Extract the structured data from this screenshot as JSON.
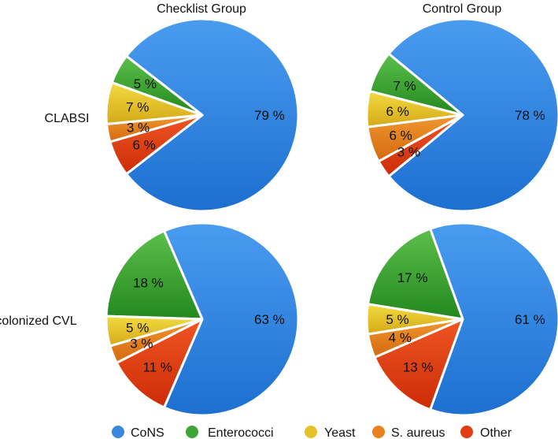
{
  "chart_data": [
    {
      "type": "pie",
      "title": "Checklist Group",
      "row_label": "CLABSI",
      "categories": [
        "CoNS",
        "Enterococci",
        "Yeast",
        "S. aureus",
        "Other"
      ],
      "values": [
        79,
        5,
        7,
        3,
        6
      ],
      "labels": [
        "79 %",
        "5 %",
        "7 %",
        "3 %",
        "6 %"
      ]
    },
    {
      "type": "pie",
      "title": "Control Group",
      "row_label": "CLABSI",
      "categories": [
        "CoNS",
        "Enterococci",
        "Yeast",
        "S. aureus",
        "Other"
      ],
      "values": [
        78,
        7,
        6,
        6,
        3
      ],
      "labels": [
        "78 %",
        "7 %",
        "6 %",
        "6 %",
        "3 %"
      ]
    },
    {
      "type": "pie",
      "title": "Checklist Group",
      "row_label": "colonized CVL",
      "categories": [
        "CoNS",
        "Enterococci",
        "Yeast",
        "S. aureus",
        "Other"
      ],
      "values": [
        63,
        18,
        5,
        3,
        11
      ],
      "labels": [
        "63 %",
        "18 %",
        "5 %",
        "3 %",
        "11 %"
      ]
    },
    {
      "type": "pie",
      "title": "Control Group",
      "row_label": "colonized CVL",
      "categories": [
        "CoNS",
        "Enterococci",
        "Yeast",
        "S. aureus",
        "Other"
      ],
      "values": [
        61,
        17,
        5,
        4,
        13
      ],
      "labels": [
        "61 %",
        "17 %",
        "5 %",
        "4 %",
        "13 %"
      ]
    }
  ],
  "column_titles": [
    "Checklist Group",
    "Control Group"
  ],
  "row_labels": [
    "CLABSI",
    "colonized CVL"
  ],
  "legend": [
    {
      "name": "CoNS",
      "color": "#3a87e0"
    },
    {
      "name": "Enterococci",
      "color": "#3fa33a"
    },
    {
      "name": "Yeast",
      "color": "#e6c22a"
    },
    {
      "name": "S. aureus",
      "color": "#e8811e"
    },
    {
      "name": "Other",
      "color": "#e23d12"
    }
  ],
  "series_colors": {
    "CoNS": [
      "#4a9cf0",
      "#1d6fd0"
    ],
    "Enterococci": [
      "#5cbf4c",
      "#23881e"
    ],
    "Yeast": [
      "#f2dc40",
      "#d4a818"
    ],
    "S. aureus": [
      "#f0962e",
      "#d46a10"
    ],
    "Other": [
      "#f05522",
      "#cc2c08"
    ]
  }
}
